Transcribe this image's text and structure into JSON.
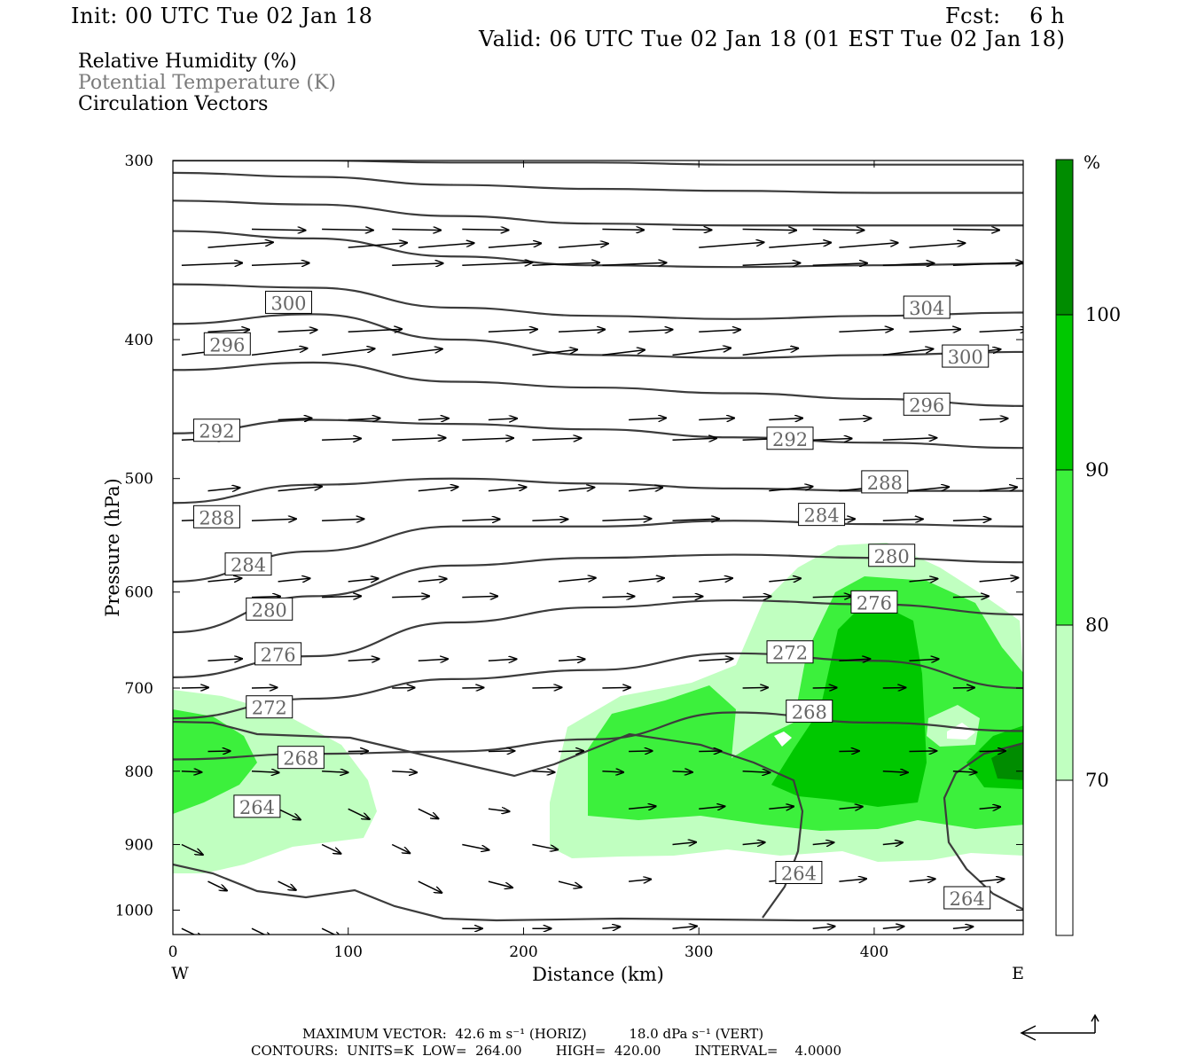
{
  "header": {
    "init": "Init: 00 UTC Tue 02 Jan 18",
    "fcst": "Fcst:    6 h",
    "valid": "Valid: 06 UTC Tue 02 Jan 18 (01 EST Tue 02 Jan 18)"
  },
  "legend": {
    "rh": "Relative Humidity (%)",
    "theta": "Potential Temperature (K)",
    "vectors": "Circulation Vectors"
  },
  "footer": {
    "max_vector": "MAXIMUM VECTOR:  42.6 m s⁻¹ (HORIZ)          18.0 dPa s⁻¹ (VERT)",
    "contours": "CONTOURS:  UNITS=K  LOW=  264.00        HIGH=  420.00        INTERVAL=    4.0000"
  },
  "colors": {
    "rh_70": "#c0ffc0",
    "rh_80": "#3cf03c",
    "rh_90": "#00c800",
    "rh_100": "#008c00",
    "contour": "#3c3c3c"
  },
  "chart_data": {
    "type": "contour",
    "xlabel": "Distance (km)",
    "ylabel": "Pressure (hPa)",
    "xlim": [
      0,
      485
    ],
    "ylim": [
      1040,
      300
    ],
    "x_ticks": [
      0,
      100,
      200,
      300,
      400
    ],
    "y_ticks": [
      300,
      400,
      500,
      600,
      700,
      800,
      900,
      1000
    ],
    "x_end_labels": {
      "left": "W",
      "right": "E"
    },
    "colorbar": {
      "unit": "%",
      "levels": [
        70,
        80,
        90,
        100
      ],
      "labels": [
        "70",
        "80",
        "90",
        "100"
      ]
    },
    "theta_lines": [
      {
        "id": "t320",
        "p": [
          300,
          300,
          301,
          301,
          302,
          302,
          302
        ]
      },
      {
        "id": "t316",
        "p": [
          306,
          308,
          312,
          314,
          315,
          316,
          316
        ]
      },
      {
        "id": "t312",
        "p": [
          320,
          322,
          328,
          332,
          333,
          333,
          333
        ]
      },
      {
        "id": "t308",
        "p": [
          336,
          340,
          350,
          355,
          356,
          355,
          354
        ]
      },
      {
        "id": "t304",
        "p": [
          366,
          368,
          380,
          385,
          387,
          385,
          383
        ]
      },
      {
        "id": "t300",
        "p": [
          390,
          384,
          400,
          410,
          412,
          410,
          408
        ]
      },
      {
        "id": "t296",
        "p": [
          420,
          415,
          428,
          432,
          436,
          440,
          445
        ]
      },
      {
        "id": "t292",
        "p": [
          465,
          455,
          458,
          462,
          468,
          472,
          476
        ]
      },
      {
        "id": "t288",
        "p": [
          520,
          505,
          500,
          504,
          508,
          510,
          510
        ]
      },
      {
        "id": "t284",
        "p": [
          590,
          562,
          540,
          540,
          535,
          538,
          540
        ]
      },
      {
        "id": "t280",
        "p": [
          640,
          604,
          575,
          568,
          565,
          568,
          572
        ]
      },
      {
        "id": "t276",
        "p": [
          688,
          665,
          630,
          615,
          608,
          612,
          622
        ]
      },
      {
        "id": "t272",
        "p": [
          735,
          712,
          690,
          680,
          662,
          670,
          700
        ]
      },
      {
        "id": "t268",
        "p": [
          785,
          778,
          775,
          760,
          728,
          740,
          750
        ]
      }
    ],
    "theta_labels": [
      {
        "text": "300",
        "x": 66,
        "p": 377
      },
      {
        "text": "296",
        "x": 31,
        "p": 403
      },
      {
        "text": "304",
        "x": 430,
        "p": 380
      },
      {
        "text": "300",
        "x": 452,
        "p": 411
      },
      {
        "text": "292",
        "x": 25,
        "p": 463
      },
      {
        "text": "296",
        "x": 430,
        "p": 444
      },
      {
        "text": "292",
        "x": 352,
        "p": 469
      },
      {
        "text": "288",
        "x": 25,
        "p": 532
      },
      {
        "text": "288",
        "x": 406,
        "p": 503
      },
      {
        "text": "284",
        "x": 370,
        "p": 530
      },
      {
        "text": "284",
        "x": 43,
        "p": 574
      },
      {
        "text": "280",
        "x": 410,
        "p": 566
      },
      {
        "text": "280",
        "x": 55,
        "p": 617
      },
      {
        "text": "276",
        "x": 60,
        "p": 663
      },
      {
        "text": "276",
        "x": 400,
        "p": 610
      },
      {
        "text": "272",
        "x": 352,
        "p": 661
      },
      {
        "text": "272",
        "x": 55,
        "p": 722
      },
      {
        "text": "268",
        "x": 363,
        "p": 727
      },
      {
        "text": "268",
        "x": 73,
        "p": 783
      },
      {
        "text": "264",
        "x": 48,
        "p": 847
      },
      {
        "text": "264",
        "x": 357,
        "p": 942
      },
      {
        "text": "264",
        "x": 453,
        "p": 981
      }
    ]
  }
}
